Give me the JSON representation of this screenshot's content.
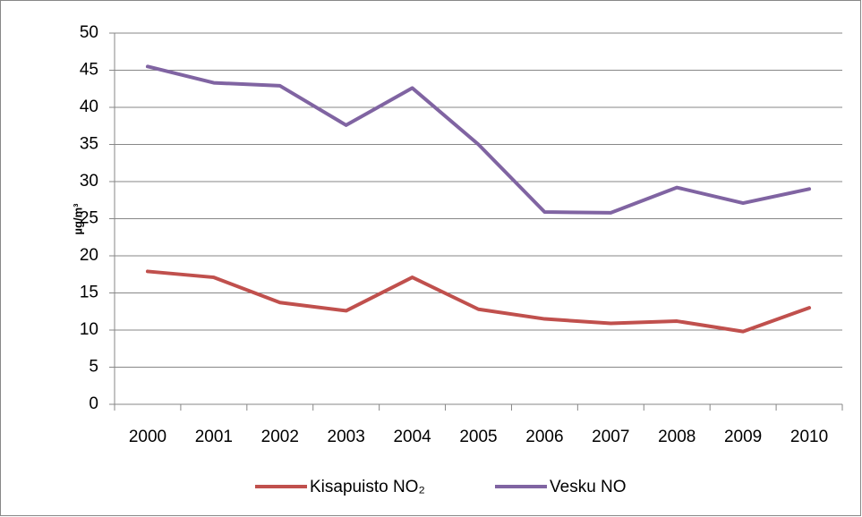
{
  "chart_data": {
    "type": "line",
    "ylabel": "µg/m³",
    "categories": [
      "2000",
      "2001",
      "2002",
      "2003",
      "2004",
      "2005",
      "2006",
      "2007",
      "2008",
      "2009",
      "2010"
    ],
    "series": [
      {
        "name": "Kisapuisto NO₂",
        "color": "#c0504d",
        "values": [
          17.9,
          17.1,
          13.7,
          12.6,
          17.1,
          12.8,
          11.5,
          10.9,
          11.2,
          9.8,
          13.0
        ]
      },
      {
        "name": "Vesku NO",
        "color": "#8064a2",
        "values": [
          45.5,
          43.3,
          42.9,
          37.6,
          42.6,
          35.0,
          25.9,
          25.8,
          29.2,
          27.1,
          29.0
        ]
      }
    ],
    "ylim": [
      0,
      50
    ],
    "yticks": [
      0,
      5,
      10,
      15,
      20,
      25,
      30,
      35,
      40,
      45,
      50
    ],
    "grid": true,
    "legend": "bottom"
  }
}
